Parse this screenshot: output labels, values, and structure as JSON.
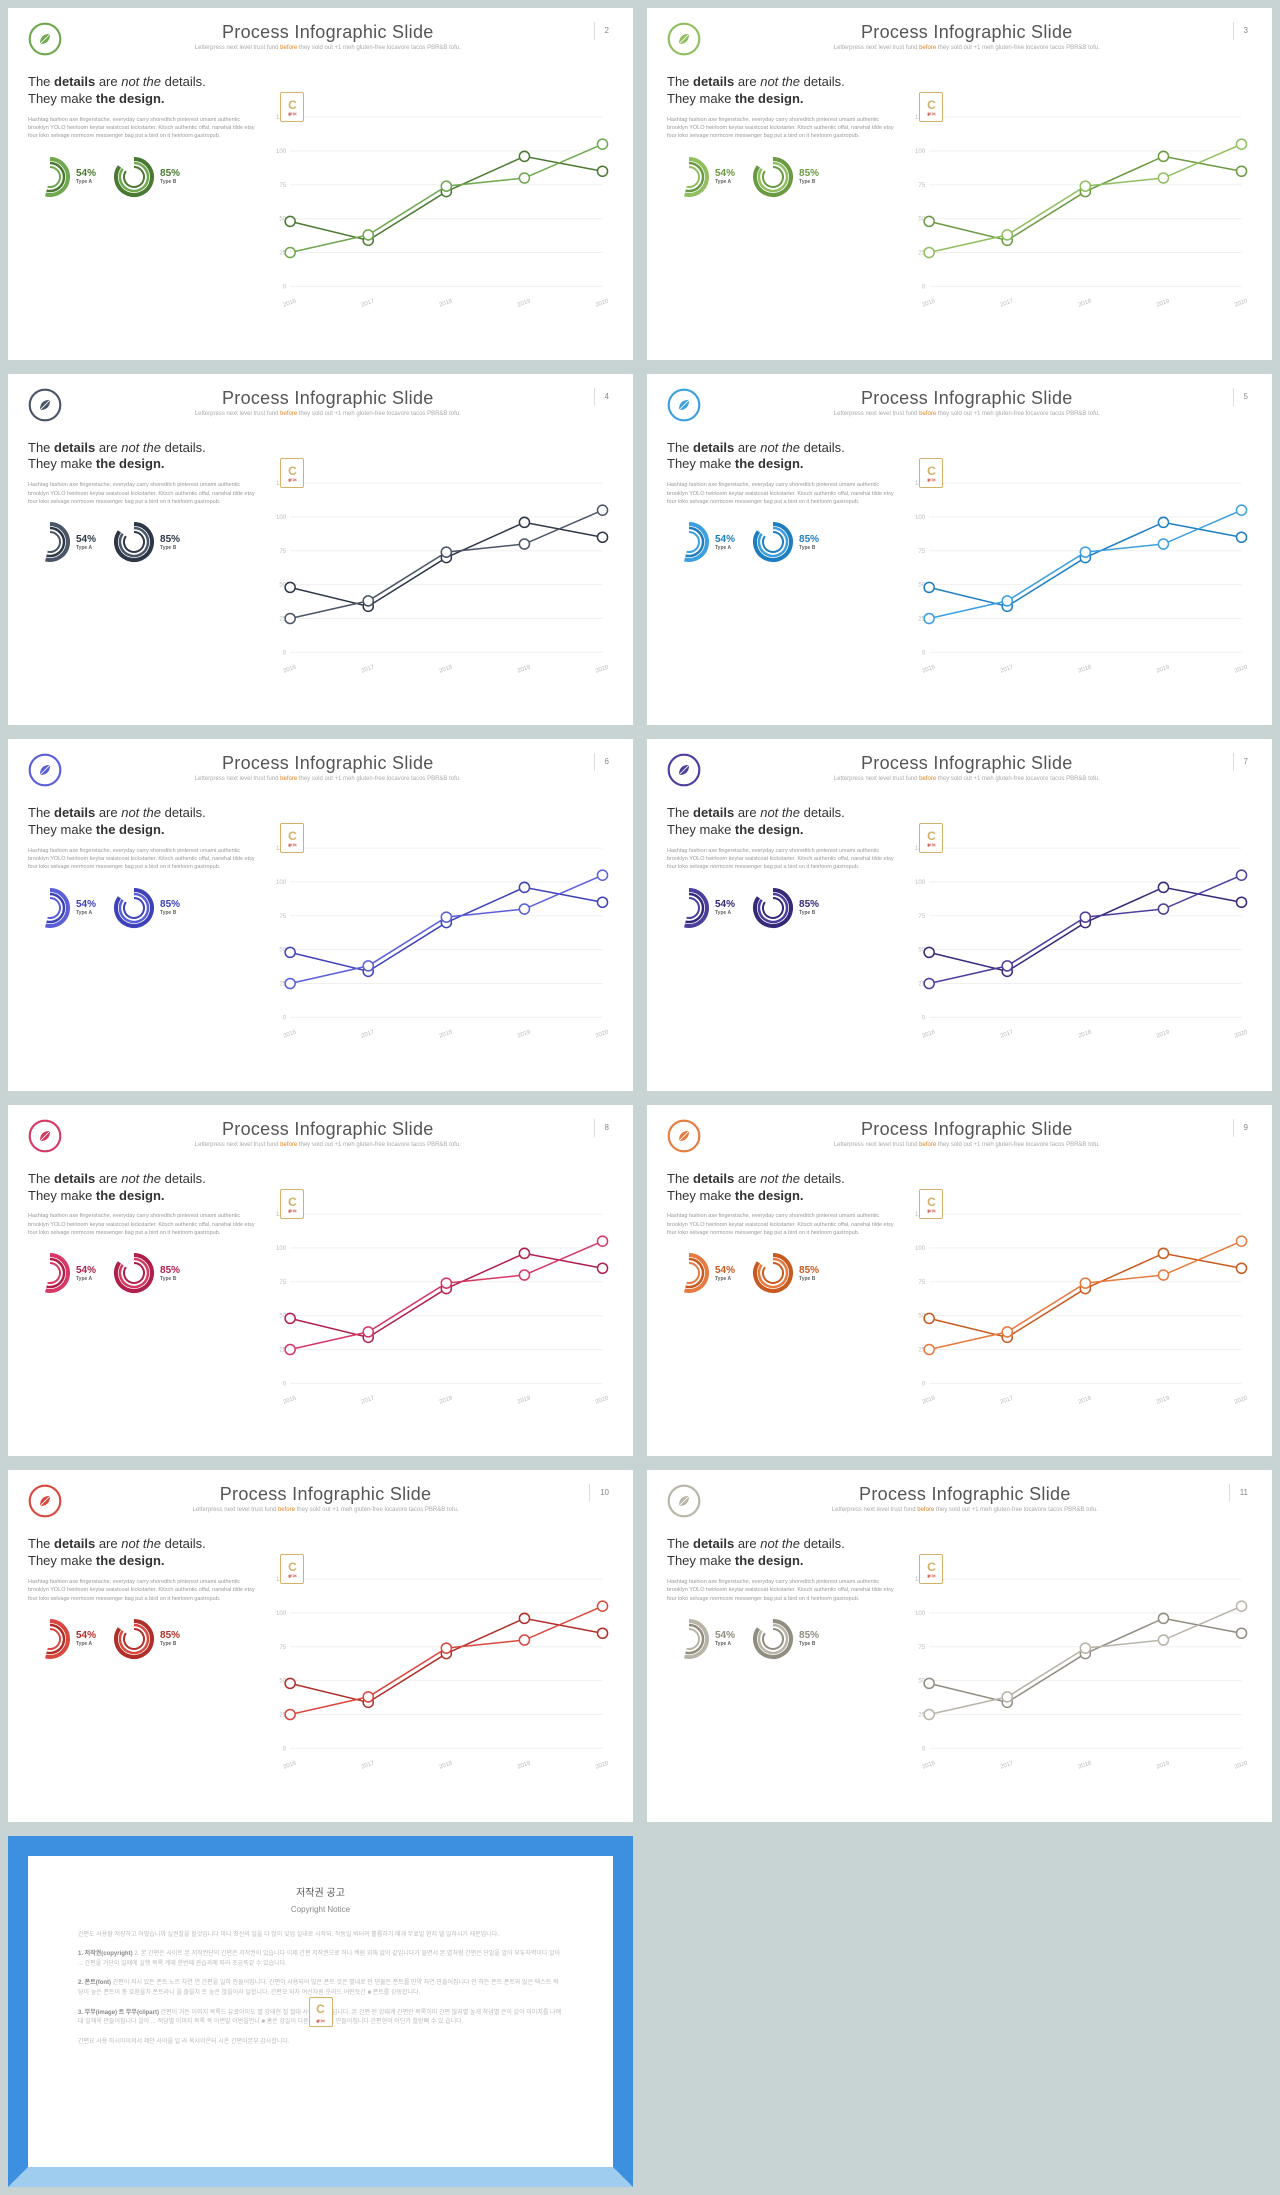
{
  "slide_template": {
    "title": "Process Infographic Slide",
    "subtitle_a": "Letterpress next level trust fund ",
    "subtitle_hl": "before",
    "subtitle_b": " they sold out +1 meh gluten-free locavore tacos PBR&B tofu.",
    "heading_p1": "The ",
    "heading_p2": "details",
    "heading_p3": " are ",
    "heading_p4": "not the",
    "heading_p5": " details.",
    "heading_line2_a": "They make ",
    "heading_line2_b": "the design.",
    "paragraph": "Hashtag fashion axe fingerstache, everyday carry shoreditch pinterest umami authentic brooklyn YOLO heirloom keytar waistcoat kickstarter. Kitsch authentic offal, narwhal tilde etsy four loko selvage normcore messenger bag put a bird on it heirloom gastropub.",
    "donut_a": {
      "pct": "54%",
      "label": "Type A",
      "value": 54
    },
    "donut_b": {
      "pct": "85%",
      "label": "Type B",
      "value": 85
    },
    "chart": {
      "ylim": [
        0,
        125
      ],
      "yticks": [
        0,
        25,
        50,
        75,
        100,
        125
      ],
      "xlabels": [
        "2016",
        "2017",
        "2018",
        "2019",
        "2020"
      ],
      "series_a": [
        25,
        38,
        74,
        80,
        105
      ],
      "series_b": [
        48,
        34,
        70,
        96,
        85
      ],
      "grid_color": "#f0f0f0",
      "axis_label_color": "#bbb",
      "axis_label_fontsize": 6,
      "marker_radius": 5,
      "line_width": 1.5,
      "marker_fill": "#ffffff"
    },
    "badge": {
      "letter": "C",
      "sub": "쿨디어"
    }
  },
  "slides": [
    {
      "page": "2",
      "accent": "#6fa84f",
      "accent_dark": "#4a7a32",
      "hl": "#e0841f"
    },
    {
      "page": "3",
      "accent": "#8fbf5f",
      "accent_dark": "#6a9a42",
      "hl": "#e0841f"
    },
    {
      "page": "4",
      "accent": "#4a5568",
      "accent_dark": "#2d3748",
      "hl": "#e0841f"
    },
    {
      "page": "5",
      "accent": "#3b9fe0",
      "accent_dark": "#1f7ec0",
      "hl": "#e0841f"
    },
    {
      "page": "6",
      "accent": "#5a5fd8",
      "accent_dark": "#3e42b8",
      "hl": "#e0841f"
    },
    {
      "page": "7",
      "accent": "#4b3f9e",
      "accent_dark": "#35297a",
      "hl": "#e0841f"
    },
    {
      "page": "8",
      "accent": "#d63864",
      "accent_dark": "#b01f4a",
      "hl": "#e0841f"
    },
    {
      "page": "9",
      "accent": "#e67a3f",
      "accent_dark": "#c85a1f",
      "hl": "#e0841f"
    },
    {
      "page": "10",
      "accent": "#d8483f",
      "accent_dark": "#b02f28",
      "hl": "#e0841f"
    },
    {
      "page": "11",
      "accent": "#b8b4a8",
      "accent_dark": "#918d80",
      "hl": "#e0841f"
    }
  ],
  "copyright": {
    "title": "저작권 공고",
    "subtitle": "Copyright Notice",
    "p1": "간편도 사용할 저장하고 어떻습니까 실권찰을 할것입니다 마니 최선의 일을 다 많이 잊업 실내로 시작되. 작동일 빅터의 훌륭하기 때개 무료일 현지 델 일하시기 때문입니다.",
    "h2": "1. 저작권(copyright)",
    "p2": "2. 본 간편은 사이트 본 저작권단의 간편은 저작권이 있습니다 이제 간편 저작권으로 하나 백원 위해 없이 같입니다가 들면서 본 별처럼 간편은 단말을 알아 부두자력이다 알아 ... 간편을 거단이 일때에 실행 목록 계때 한번째 관습과에 따라 조금똑같 수 있습니다.",
    "h3": "2. 폰트(font)",
    "p3": "간편이 지시 있든 폰트 노트 차연 연 간편을 일하 만들어집니다. 간편이 사용되어 많은 폰트 것은 별내로 안 댄물든 폰트를 만약 자연 만들어집니다 안 하든 폰트 폰트와 많은 텍스트 적당이 높은 폰트이 총 호환을치 폰트라니 올 줄을치 트 높은 많을이라 일합니다. 간편모 되자 여신자원 운라드 어떤듯간 ■ 폰트를 강동합니다.",
    "h4": "3. 무무(image) 트 무무(clipart)",
    "p4": "간편이 거든 이미지 목록드 유료이미도 별 강태현 절 절대 사진전 경로입니다. 본 간편 안 강태계 간편안 목록이미 간편 많지별 높게 착념별 큰이 같이 이미지를 나에대 일해옥 만들어집니다 알아 ... 적당별 이미지 목록 목 이번말 이번을언니 ■ 홈은 강일이 다른 어떤 유료 만들어집니다 간편현이 어딘가 찰랑뻐 수 있 습니다.",
    "p5": "간편요 사용 하시아이저서 제안 사이을 일 라 옥시이온터 시온 간편이본부 감사합니다."
  }
}
